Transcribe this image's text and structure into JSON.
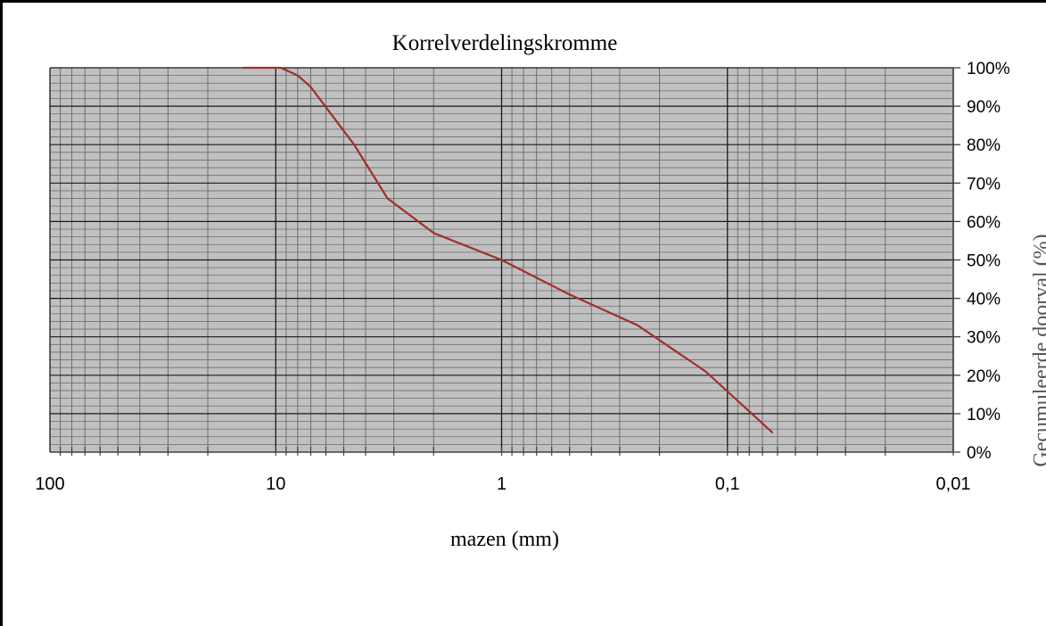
{
  "chart_data": {
    "type": "line",
    "title": "Korrelverdelingskromme",
    "xlabel": "mazen (mm)",
    "ylabel": "Gecumuleerde doorval (%)",
    "x_scale": "log",
    "x_reversed": true,
    "xlim": [
      100,
      0.01
    ],
    "ylim": [
      0,
      100
    ],
    "x_ticks": [
      {
        "value": 100,
        "label": "100"
      },
      {
        "value": 10,
        "label": "10"
      },
      {
        "value": 1,
        "label": "1"
      },
      {
        "value": 0.1,
        "label": "0,1"
      },
      {
        "value": 0.01,
        "label": "0,01"
      }
    ],
    "y_ticks": [
      {
        "value": 0,
        "label": "0%"
      },
      {
        "value": 10,
        "label": "10%"
      },
      {
        "value": 20,
        "label": "20%"
      },
      {
        "value": 30,
        "label": "30%"
      },
      {
        "value": 40,
        "label": "40%"
      },
      {
        "value": 50,
        "label": "50%"
      },
      {
        "value": 60,
        "label": "60%"
      },
      {
        "value": 70,
        "label": "70%"
      },
      {
        "value": 80,
        "label": "80%"
      },
      {
        "value": 90,
        "label": "90%"
      },
      {
        "value": 100,
        "label": "100%"
      }
    ],
    "grid": true,
    "y_axis_side": "right",
    "series": [
      {
        "color": "#a0302a",
        "x": [
          14,
          9.5,
          8,
          7,
          4.5,
          3.2,
          2,
          1,
          0.5,
          0.25,
          0.125,
          0.063
        ],
        "y": [
          100,
          100,
          98,
          95,
          80,
          66,
          57,
          50,
          41,
          33,
          21,
          5
        ]
      }
    ],
    "colors": {
      "plot_background": "#c0c0c0",
      "minor_grid": "#6e6e6e",
      "major_grid": "#1a1a1a",
      "axis": "#404040"
    }
  }
}
